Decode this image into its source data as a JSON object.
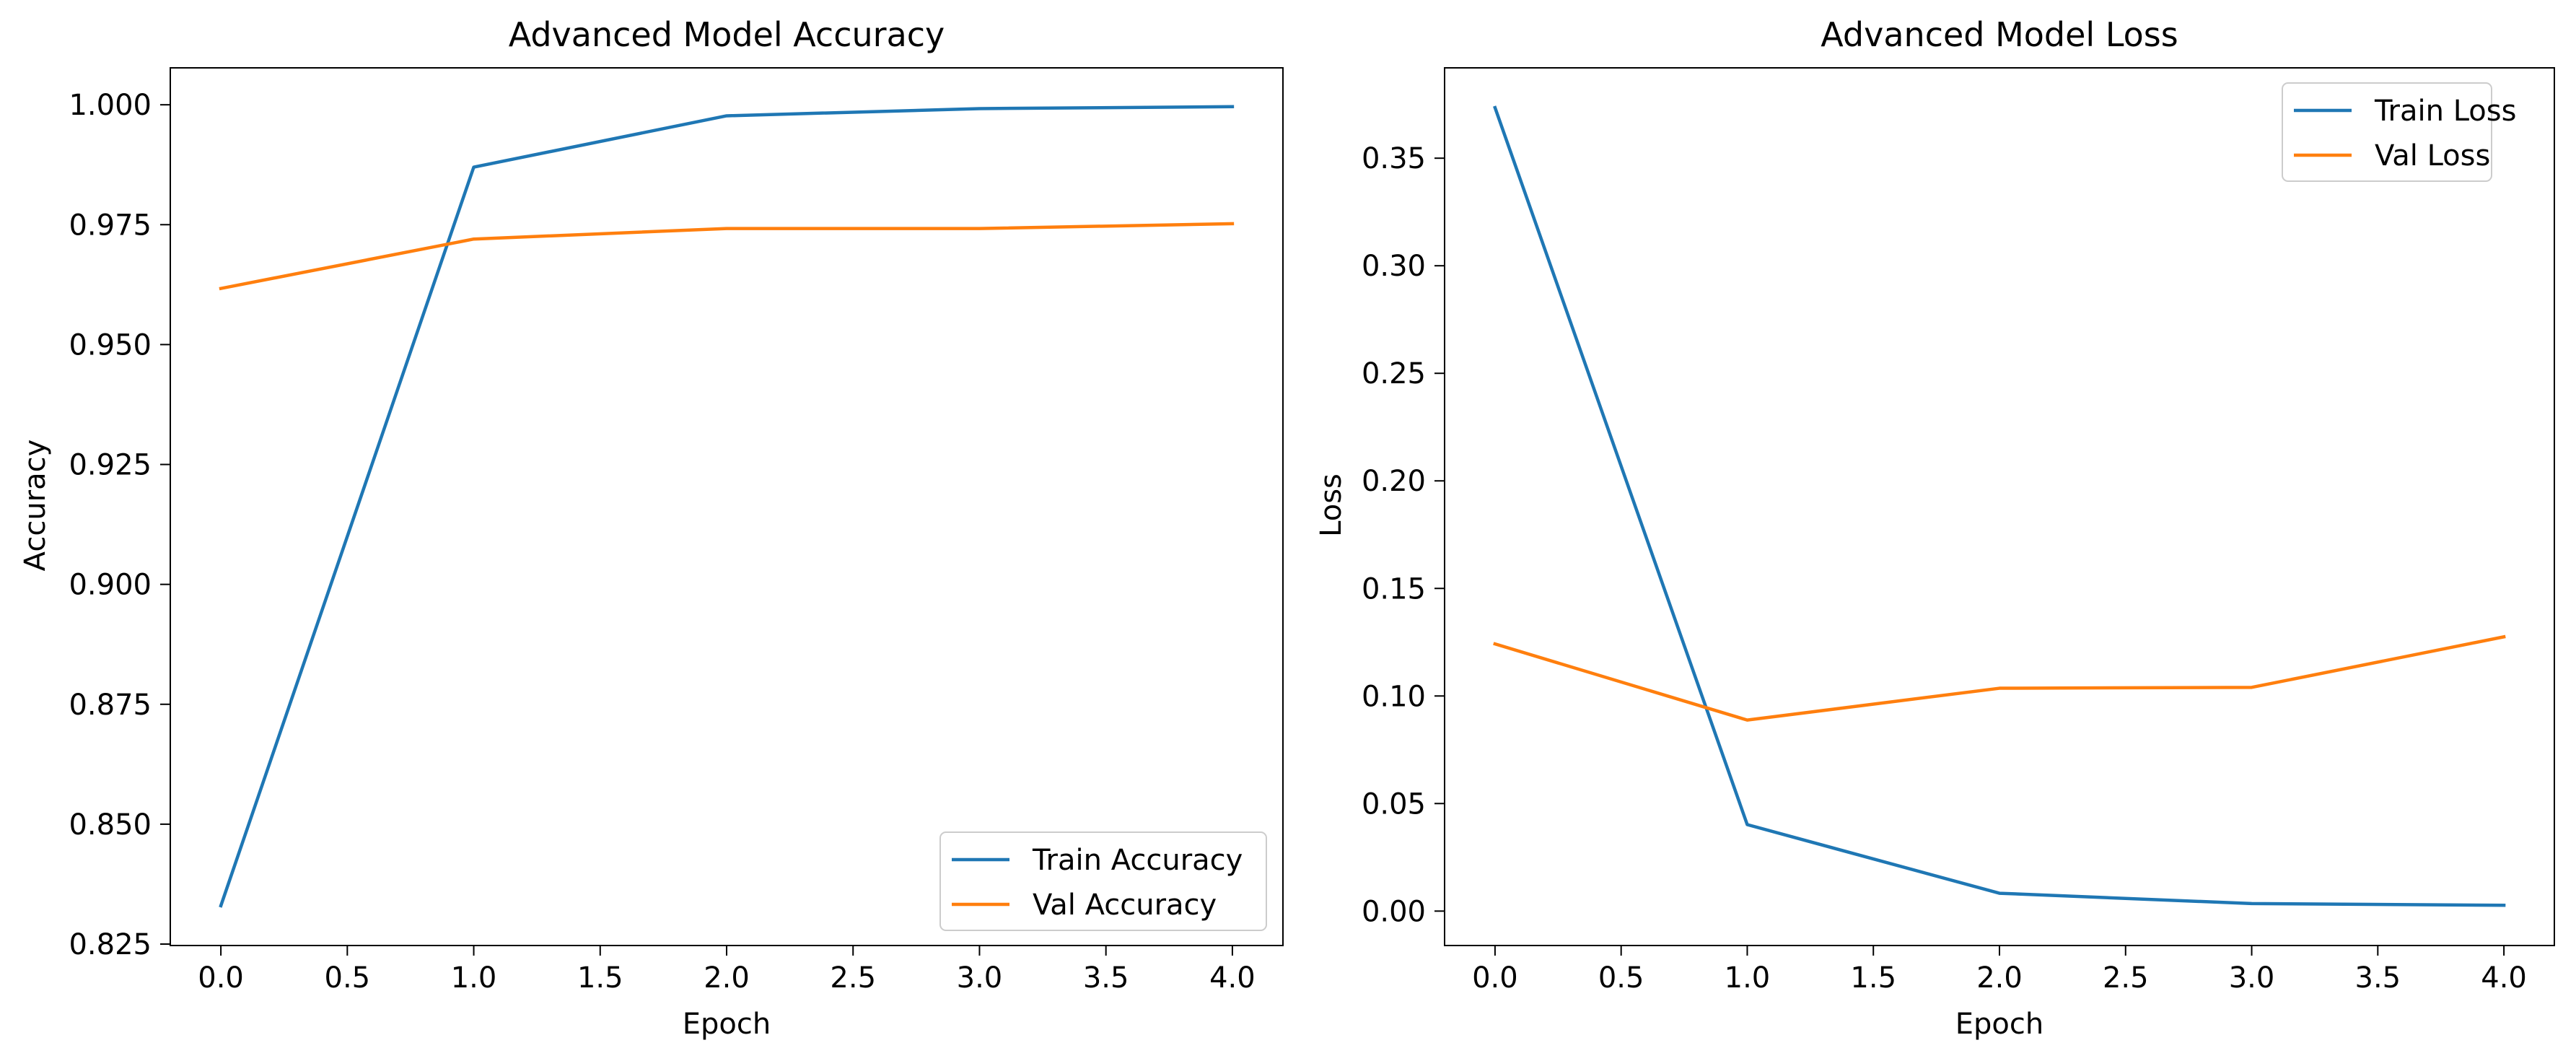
{
  "chart_data": [
    {
      "type": "line",
      "title": "Advanced Model Accuracy",
      "xlabel": "Epoch",
      "ylabel": "Accuracy",
      "x": [
        0,
        1,
        2,
        3,
        4
      ],
      "xlim": [
        -0.2,
        4.2
      ],
      "ylim": [
        0.8247,
        1.0077
      ],
      "xticks": [
        0.0,
        0.5,
        1.0,
        1.5,
        2.0,
        2.5,
        3.0,
        3.5,
        4.0
      ],
      "xtick_labels": [
        "0.0",
        "0.5",
        "1.0",
        "1.5",
        "2.0",
        "2.5",
        "3.0",
        "3.5",
        "4.0"
      ],
      "yticks": [
        0.825,
        0.85,
        0.875,
        0.9,
        0.925,
        0.95,
        0.975,
        1.0
      ],
      "ytick_labels": [
        "0.825",
        "0.850",
        "0.875",
        "0.900",
        "0.925",
        "0.950",
        "0.975",
        "1.000"
      ],
      "grid": false,
      "legend_position": "lower-right",
      "series": [
        {
          "name": "Train Accuracy",
          "color": "#1f77b4",
          "values": [
            0.833,
            0.987,
            0.9977,
            0.9992,
            0.9996
          ]
        },
        {
          "name": "Val Accuracy",
          "color": "#ff7f0e",
          "values": [
            0.9617,
            0.972,
            0.9742,
            0.9742,
            0.9752
          ]
        }
      ]
    },
    {
      "type": "line",
      "title": "Advanced Model Loss",
      "xlabel": "Epoch",
      "ylabel": "Loss",
      "x": [
        0,
        1,
        2,
        3,
        4
      ],
      "xlim": [
        -0.2,
        4.2
      ],
      "ylim": [
        -0.016,
        0.392
      ],
      "xticks": [
        0.0,
        0.5,
        1.0,
        1.5,
        2.0,
        2.5,
        3.0,
        3.5,
        4.0
      ],
      "xtick_labels": [
        "0.0",
        "0.5",
        "1.0",
        "1.5",
        "2.0",
        "2.5",
        "3.0",
        "3.5",
        "4.0"
      ],
      "yticks": [
        0.0,
        0.05,
        0.1,
        0.15,
        0.2,
        0.25,
        0.3,
        0.35
      ],
      "ytick_labels": [
        "0.00",
        "0.05",
        "0.10",
        "0.15",
        "0.20",
        "0.25",
        "0.30",
        "0.35"
      ],
      "grid": false,
      "legend_position": "upper-right",
      "series": [
        {
          "name": "Train Loss",
          "color": "#1f77b4",
          "values": [
            0.3735,
            0.0402,
            0.0083,
            0.0035,
            0.0027
          ]
        },
        {
          "name": "Val Loss",
          "color": "#ff7f0e",
          "values": [
            0.1242,
            0.0888,
            0.1036,
            0.104,
            0.1275
          ]
        }
      ]
    }
  ]
}
